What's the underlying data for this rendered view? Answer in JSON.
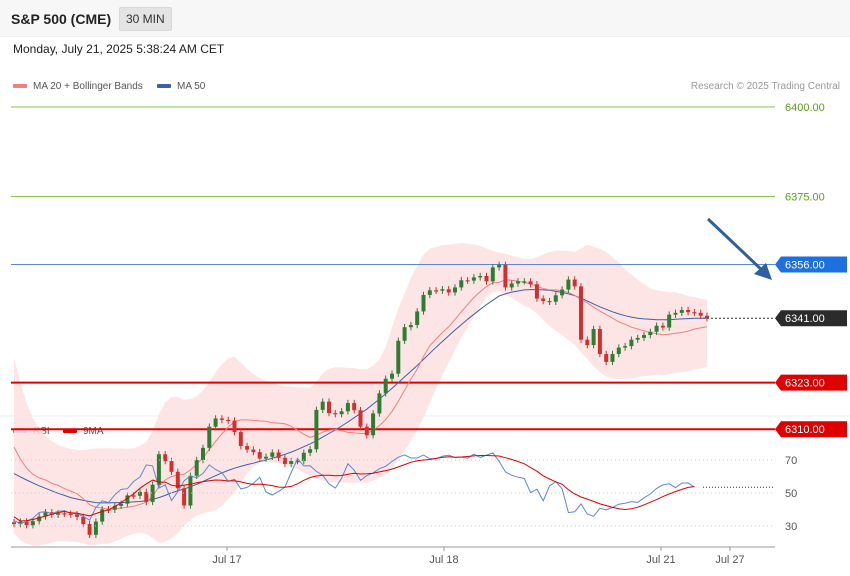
{
  "header": {
    "title": "S&P 500 (CME)",
    "timeframe": "30 MIN",
    "datetime": "Monday, July 21, 2025 5:38:24 AM CET",
    "credit": "Research © 2025 Trading Central"
  },
  "legend": {
    "ma20": "MA 20 + Bollinger Bands",
    "ma50": "MA 50",
    "rsi": "RSI",
    "rsi_ma": "9MA"
  },
  "colors": {
    "ma20": "#f08080",
    "bands": "#fde0e0",
    "ma50": "#3c5fa8",
    "bull": "#2e7d32",
    "bear": "#d32f2f",
    "support": "#e00000",
    "resistance_green": "#8cc34a",
    "resistance_blue": "#5b88d6",
    "current": "#2b2b2b",
    "arrow": "#2f5f9f",
    "rsi_line": "#5b88d6",
    "rsi_ma": "#e00000"
  },
  "chart_data": [
    {
      "type": "candlestick",
      "title": "",
      "x_labels": [
        "Jul 17",
        "Jul 18",
        "Jul 21",
        "Jul 27"
      ],
      "y_range": [
        6280,
        6405
      ],
      "levels": [
        {
          "value": 6400.0,
          "label": "6400.00",
          "kind": "resistance"
        },
        {
          "value": 6375.0,
          "label": "6375.00",
          "kind": "resistance"
        },
        {
          "value": 6356.0,
          "label": "6356.00",
          "kind": "pivot"
        },
        {
          "value": 6341.0,
          "label": "6341.00",
          "kind": "current"
        },
        {
          "value": 6323.0,
          "label": "6323.00",
          "kind": "support"
        },
        {
          "value": 6310.0,
          "label": "6310.00",
          "kind": "support"
        }
      ],
      "close": [
        6283.5,
        6284.2,
        6283.2,
        6284.3,
        6285.6,
        6286.8,
        6286.1,
        6286.5,
        6286.4,
        6286.2,
        6285.5,
        6283.5,
        6280.5,
        6284.2,
        6287.6,
        6287.5,
        6288.6,
        6289.2,
        6291.5,
        6291.4,
        6292.5,
        6289.7,
        6294.5,
        6303.0,
        6301.1,
        6298.1,
        6293.5,
        6288.7,
        6297.0,
        6301.4,
        6304.8,
        6310.7,
        6313.0,
        6312.6,
        6312.4,
        6309.2,
        6305.3,
        6304.3,
        6303.6,
        6301.8,
        6302.3,
        6303.5,
        6302.0,
        6300.3,
        6301.1,
        6301.1,
        6303.4,
        6304.4,
        6315.4,
        6317.7,
        6314.5,
        6314.2,
        6315.0,
        6317.3,
        6315.3,
        6310.7,
        6308.3,
        6314.4,
        6320.0,
        6324.1,
        6325.5,
        6334.7,
        6338.5,
        6339.1,
        6342.9,
        6347.5,
        6348.8,
        6348.7,
        6349.1,
        6348.2,
        6349.6,
        6351.6,
        6351.5,
        6352.4,
        6352.8,
        6351.3,
        6355.2,
        6355.9,
        6349.6,
        6350.7,
        6351.3,
        6351.3,
        6350.5,
        6346.5,
        6345.8,
        6345.6,
        6347.4,
        6349.0,
        6351.8,
        6349.9,
        6335.0,
        6333.5,
        6338.0,
        6331.0,
        6328.8,
        6331.0,
        6332.8,
        6333.2,
        6335.0,
        6335.5,
        6336.3,
        6337.2,
        6338.9,
        6338.4,
        6342.0,
        6342.5,
        6343.3,
        6342.7,
        6342.5,
        6341.7,
        6341.0
      ],
      "ma20": [
        6305.0,
        6301.7,
        6299.1,
        6297.4,
        6296.4,
        6295.8,
        6294.9,
        6294.3,
        6293.4,
        6292.7,
        6292.0,
        6290.6,
        6288.9,
        6288.2,
        6288.0,
        6287.6,
        6287.7,
        6288.0,
        6288.2,
        6288.5,
        6289.0,
        6289.6,
        6291.2,
        6294.0,
        6295.8,
        6296.8,
        6297.2,
        6297.4,
        6298.6,
        6300.2,
        6302.0,
        6304.3,
        6306.6,
        6308.7,
        6310.6,
        6312.1,
        6312.6,
        6312.6,
        6312.5,
        6312.3,
        6312.2,
        6311.8,
        6311.7,
        6311.5,
        6310.8,
        6309.7,
        6308.6,
        6307.7,
        6308.3,
        6309.2,
        6309.7,
        6309.9,
        6309.6,
        6309.1,
        6309.0,
        6308.8,
        6308.8,
        6309.7,
        6311.0,
        6312.7,
        6315.0,
        6317.8,
        6320.9,
        6324.0,
        6326.8,
        6330.3,
        6333.3,
        6335.2,
        6337.0,
        6338.6,
        6340.7,
        6342.8,
        6344.8,
        6346.8,
        6348.4,
        6349.9,
        6350.9,
        6351.0,
        6351.8,
        6351.6,
        6351.3,
        6351.0,
        6350.6,
        6349.9,
        6349.3,
        6348.9,
        6348.9,
        6348.6,
        6348.2,
        6347.4,
        6346.2,
        6345.3,
        6344.1,
        6343.0,
        6342.0,
        6341.0,
        6340.0,
        6339.3,
        6338.5,
        6338.0,
        6337.5,
        6337.0,
        6336.7,
        6336.4,
        6336.5,
        6336.8,
        6337.0,
        6337.4,
        6338.0,
        6338.3,
        6338.6
      ],
      "ma50": [
        6297.6,
        6296.7,
        6295.8,
        6295.0,
        6294.2,
        6293.5,
        6292.8,
        6292.1,
        6291.5,
        6290.9,
        6290.5,
        6290.1,
        6289.8,
        6289.5,
        6289.4,
        6289.4,
        6289.5,
        6289.5,
        6289.6,
        6289.7,
        6289.8,
        6290.0,
        6290.4,
        6290.9,
        6291.5,
        6292.2,
        6292.8,
        6293.3,
        6293.9,
        6294.6,
        6295.4,
        6296.2,
        6297.0,
        6297.8,
        6298.5,
        6299.1,
        6299.6,
        6300.1,
        6300.5,
        6301.0,
        6301.4,
        6301.9,
        6302.4,
        6303.0,
        6303.6,
        6304.3,
        6305.1,
        6305.9,
        6306.8,
        6307.8,
        6308.8,
        6309.8,
        6310.9,
        6312.0,
        6313.2,
        6314.4,
        6315.6,
        6317.0,
        6318.4,
        6319.9,
        6321.4,
        6323.0,
        6324.6,
        6326.2,
        6327.8,
        6329.5,
        6331.2,
        6332.9,
        6334.5,
        6336.1,
        6337.7,
        6339.2,
        6340.7,
        6342.1,
        6343.5,
        6344.8,
        6346.0,
        6347.2,
        6347.8,
        6348.3,
        6348.6,
        6348.9,
        6349.0,
        6349.0,
        6348.9,
        6348.8,
        6348.5,
        6348.2,
        6347.8,
        6347.3,
        6346.6,
        6345.8,
        6345.0,
        6344.2,
        6343.5,
        6342.8,
        6342.2,
        6341.7,
        6341.3,
        6341.0,
        6340.8,
        6340.7,
        6340.6,
        6340.6,
        6340.6,
        6340.7,
        6340.8,
        6340.9,
        6341.0,
        6341.0,
        6341.0
      ],
      "bb_upper": [
        6330.0,
        6323.0,
        6317.3,
        6313.1,
        6310.1,
        6308.2,
        6306.7,
        6305.6,
        6305.0,
        6304.5,
        6304.2,
        6304.2,
        6304.4,
        6304.6,
        6304.7,
        6304.7,
        6304.6,
        6304.6,
        6304.5,
        6304.7,
        6305.3,
        6306.5,
        6309.5,
        6314.2,
        6317.5,
        6319.0,
        6319.0,
        6318.2,
        6318.4,
        6319.2,
        6320.8,
        6323.2,
        6325.9,
        6328.1,
        6329.8,
        6330.2,
        6328.6,
        6326.8,
        6325.4,
        6324.3,
        6323.5,
        6323.0,
        6322.4,
        6322.0,
        6321.9,
        6321.7,
        6321.8,
        6321.5,
        6323.3,
        6325.6,
        6326.9,
        6327.3,
        6327.3,
        6327.1,
        6327.1,
        6326.8,
        6326.8,
        6327.7,
        6329.5,
        6333.0,
        6338.5,
        6343.7,
        6347.9,
        6352.3,
        6355.6,
        6358.8,
        6360.5,
        6360.9,
        6361.4,
        6361.5,
        6361.8,
        6362.0,
        6361.8,
        6361.6,
        6361.1,
        6360.5,
        6359.8,
        6359.3,
        6359.0,
        6358.5,
        6358.0,
        6357.5,
        6357.5,
        6358.0,
        6358.8,
        6359.5,
        6359.9,
        6359.9,
        6359.8,
        6359.5,
        6360.5,
        6361.5,
        6361.0,
        6360.4,
        6359.5,
        6358.0,
        6356.5,
        6354.7,
        6353.2,
        6351.8,
        6350.5,
        6349.3,
        6348.8,
        6348.5,
        6348.3,
        6348.2,
        6347.8,
        6347.2,
        6346.9,
        6346.5,
        6346.1
      ],
      "bb_lower": [
        6281.0,
        6279.0,
        6278.0,
        6277.6,
        6277.6,
        6277.9,
        6278.3,
        6278.7,
        6278.7,
        6278.6,
        6278.5,
        6278.1,
        6277.6,
        6277.7,
        6277.9,
        6278.0,
        6278.7,
        6279.4,
        6280.2,
        6280.8,
        6281.0,
        6280.8,
        6279.6,
        6278.3,
        6278.5,
        6279.4,
        6281.0,
        6283.1,
        6284.6,
        6285.9,
        6286.5,
        6286.9,
        6287.4,
        6288.6,
        6290.4,
        6292.3,
        6295.0,
        6297.6,
        6299.5,
        6300.6,
        6301.0,
        6300.7,
        6300.5,
        6300.1,
        6299.6,
        6298.9,
        6297.9,
        6297.0,
        6296.3,
        6295.6,
        6295.3,
        6295.2,
        6295.1,
        6295.0,
        6295.0,
        6295.0,
        6295.0,
        6295.6,
        6296.4,
        6297.2,
        6299.1,
        6301.3,
        6303.9,
        6306.8,
        6309.8,
        6313.2,
        6317.3,
        6321.3,
        6325.1,
        6328.7,
        6332.1,
        6335.6,
        6338.4,
        6341.5,
        6344.3,
        6346.9,
        6348.2,
        6348.6,
        6347.6,
        6346.7,
        6345.6,
        6344.5,
        6343.7,
        6342.3,
        6340.6,
        6338.8,
        6337.5,
        6336.3,
        6334.9,
        6333.6,
        6331.4,
        6329.6,
        6327.6,
        6325.9,
        6324.7,
        6324.2,
        6324.0,
        6324.1,
        6324.2,
        6324.5,
        6324.8,
        6325.0,
        6325.2,
        6325.1,
        6325.4,
        6325.7,
        6325.9,
        6326.2,
        6326.6,
        6327.0,
        6327.4
      ]
    },
    {
      "type": "line",
      "title": "",
      "y_range": [
        20,
        80
      ],
      "y_ticks": [
        30,
        50,
        70
      ],
      "series": [
        {
          "name": "RSI",
          "values": [
            33.3,
            31.4,
            32.8,
            34.7,
            38.2,
            38.7,
            37.4,
            38.9,
            39.2,
            37.7,
            37.4,
            35.8,
            33.5,
            41.2,
            45.3,
            44.2,
            48.9,
            52.2,
            52.6,
            57.0,
            59.7,
            67.0,
            66.4,
            52.9,
            55.0,
            45.4,
            50.8,
            57.4,
            60.4,
            59.2,
            61.9,
            67.0,
            64.2,
            62.3,
            57.1,
            58.3,
            52.5,
            53.4,
            55.9,
            59.5,
            50.6,
            48.8,
            51.0,
            53.5,
            62.4,
            70.9,
            66.4,
            66.5,
            63.1,
            60.8,
            55.5,
            53.0,
            58.9,
            67.7,
            63.8,
            57.7,
            60.5,
            62.2,
            64.7,
            66.2,
            69.1,
            71.7,
            73.1,
            71.2,
            71.2,
            73.0,
            70.7,
            70.8,
            72.3,
            73.0,
            71.5,
            71.8,
            71.1,
            73.6,
            71.6,
            73.0,
            74.3,
            69.2,
            62.8,
            60.7,
            59.6,
            58.8,
            50.2,
            52.3,
            45.3,
            54.3,
            56.9,
            52.6,
            38.1,
            38.6,
            43.4,
            37.3,
            35.9,
            40.7,
            39.8,
            41.2,
            43.2,
            43.8,
            44.8,
            44.3,
            47.1,
            49.4,
            52.8,
            54.9,
            55.6,
            53.3,
            56.0,
            56.1,
            53.5
          ]
        },
        {
          "name": "9MA",
          "values": [
            35.6,
            33.0,
            33.3,
            33.9,
            35.0,
            36.0,
            37.1,
            38.1,
            38.8,
            38.0,
            37.8,
            36.9,
            36.2,
            37.6,
            38.8,
            39.8,
            41.7,
            44.2,
            46.9,
            49.5,
            52.9,
            55.5,
            57.8,
            56.6,
            56.6,
            54.7,
            54.1,
            54.8,
            55.3,
            56.2,
            56.9,
            57.4,
            57.9,
            57.7,
            57.3,
            57.4,
            56.7,
            55.8,
            55.2,
            55.4,
            55.0,
            54.5,
            53.6,
            53.5,
            54.0,
            55.6,
            57.7,
            59.4,
            60.3,
            60.8,
            60.8,
            60.4,
            60.6,
            61.4,
            62.0,
            61.5,
            61.7,
            62.0,
            62.8,
            63.6,
            64.5,
            65.8,
            67.2,
            68.6,
            69.5,
            70.0,
            70.3,
            71.0,
            71.6,
            72.0,
            71.7,
            71.8,
            72.1,
            72.5,
            72.7,
            72.7,
            72.6,
            72.4,
            71.4,
            70.3,
            69.1,
            67.7,
            65.4,
            63.2,
            60.4,
            58.5,
            56.8,
            55.3,
            52.0,
            49.4,
            47.6,
            46.3,
            44.9,
            43.4,
            42.4,
            41.3,
            40.5,
            40.0,
            40.4,
            41.4,
            42.8,
            44.4,
            46.0,
            47.8,
            49.4,
            50.9,
            52.2,
            53.4,
            53.9
          ]
        }
      ]
    }
  ]
}
